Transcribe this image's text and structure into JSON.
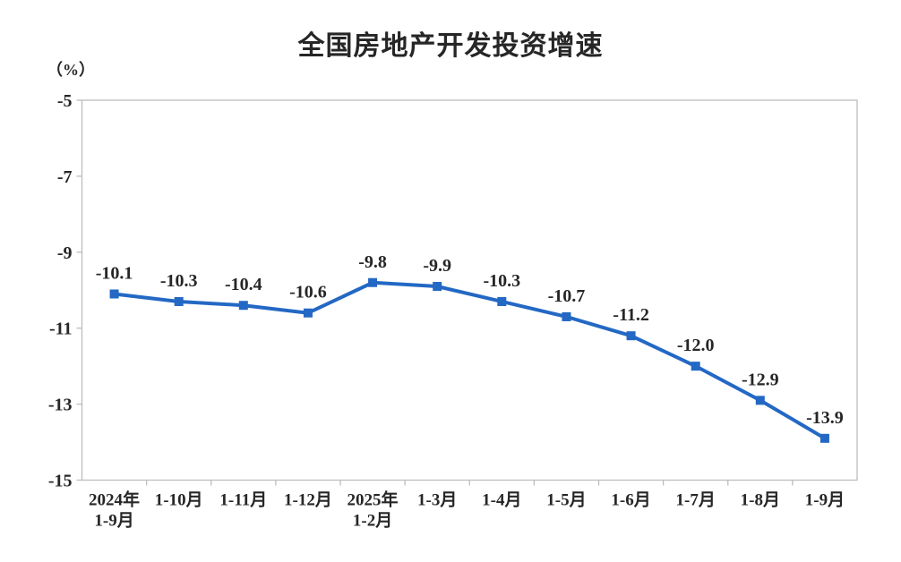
{
  "chart_data": {
    "type": "line",
    "title": "全国房地产开发投资增速",
    "unit_label": "（%）",
    "categories": [
      "2024年\n1-9月",
      "1-10月",
      "1-11月",
      "1-12月",
      "2025年\n1-2月",
      "1-3月",
      "1-4月",
      "1-5月",
      "1-6月",
      "1-7月",
      "1-8月",
      "1-9月"
    ],
    "values": [
      -10.1,
      -10.3,
      -10.4,
      -10.6,
      -9.8,
      -9.9,
      -10.3,
      -10.7,
      -11.2,
      -12.0,
      -12.9,
      -13.9
    ],
    "point_labels": [
      "-10.1",
      "-10.3",
      "-10.4",
      "-10.6",
      "-9.8",
      "-9.9",
      "-10.3",
      "-10.7",
      "-11.2",
      "-12.0",
      "-12.9",
      "-13.9"
    ],
    "xlabel": "",
    "ylabel": "（%）",
    "ylim": [
      -15,
      -5
    ],
    "yticks": [
      -5,
      -7,
      -9,
      -11,
      -13,
      -15
    ],
    "grid": false,
    "legend": "none",
    "line_color": "#2368C4",
    "marker": "square",
    "axis_color": "#BDBDBD",
    "text_color": "#262626"
  }
}
